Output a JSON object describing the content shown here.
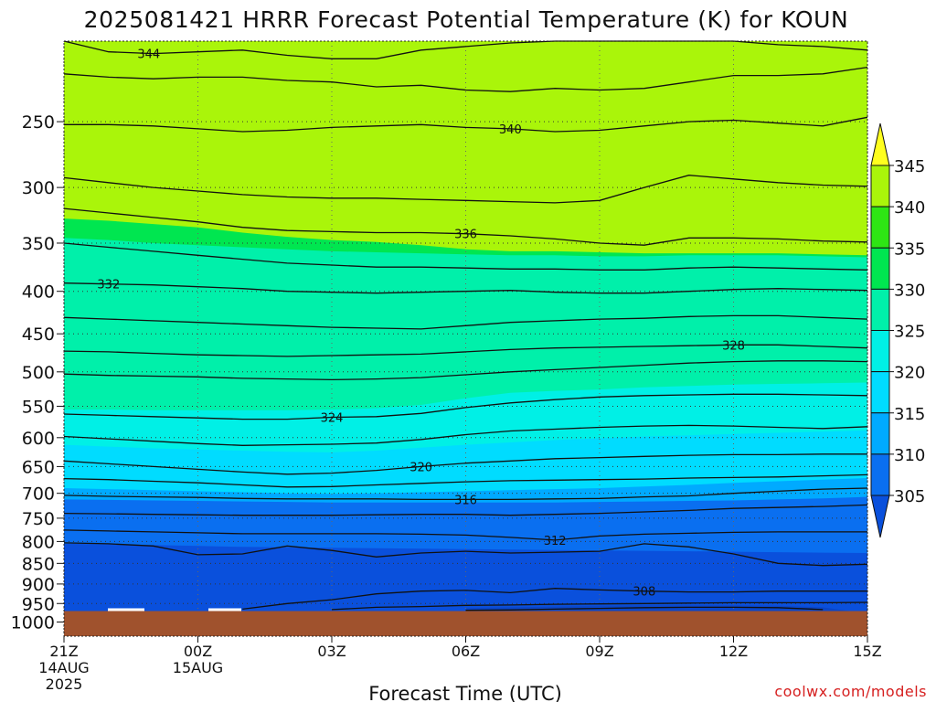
{
  "title": "2025081421 HRRR Forecast Potential Temperature (K) for KOUN",
  "watermark": "coolwx.com/models",
  "chart_data": {
    "type": "contour",
    "title": "2025081421 HRRR Forecast Potential Temperature (K) for KOUN",
    "xlabel": "Forecast Time (UTC)",
    "ylabel": "",
    "x_ticks": [
      {
        "hour": 0,
        "label": "21Z",
        "sub1": "14AUG",
        "sub2": "2025"
      },
      {
        "hour": 3,
        "label": "00Z",
        "sub1": "15AUG",
        "sub2": ""
      },
      {
        "hour": 6,
        "label": "03Z",
        "sub1": "",
        "sub2": ""
      },
      {
        "hour": 9,
        "label": "06Z",
        "sub1": "",
        "sub2": ""
      },
      {
        "hour": 12,
        "label": "09Z",
        "sub1": "",
        "sub2": ""
      },
      {
        "hour": 15,
        "label": "12Z",
        "sub1": "",
        "sub2": ""
      },
      {
        "hour": 18,
        "label": "15Z",
        "sub1": "",
        "sub2": ""
      }
    ],
    "x_range_hours": [
      0,
      18
    ],
    "y_ticks": [
      250,
      300,
      350,
      400,
      450,
      500,
      550,
      600,
      650,
      700,
      750,
      800,
      850,
      900,
      950,
      1000
    ],
    "y_scale": "log",
    "y_range": [
      200,
      1040
    ],
    "surface_pressure": 970,
    "colorbar": {
      "levels": [
        305,
        310,
        315,
        320,
        325,
        330,
        335,
        340,
        345
      ],
      "labels": [
        "345",
        "340",
        "335",
        "330",
        "325",
        "320",
        "315",
        "310",
        "305"
      ],
      "colors": {
        "lt305": "#0a50dc",
        "305": "#0a6ff0",
        "310": "#00aaff",
        "315": "#00dcff",
        "320": "#00f0e6",
        "325": "#00f0aa",
        "330": "#00e650",
        "335": "#2ee614",
        "340": "#aaf50a",
        "gt345": "#ffff1e"
      },
      "ground": "#a0522d"
    },
    "contours": [
      {
        "value": 344,
        "label": "344",
        "label_hour": 1.9,
        "p": [
          200,
          206,
          207,
          206,
          205,
          208,
          210,
          210,
          205,
          203,
          201,
          200,
          200,
          200,
          200,
          200,
          202,
          203,
          205
        ]
      },
      {
        "value": 342,
        "label": "",
        "p": [
          219,
          221,
          222,
          221,
          221,
          223,
          224,
          227,
          226,
          229,
          230,
          228,
          229,
          228,
          224,
          220,
          220,
          219,
          215
        ]
      },
      {
        "value": 340,
        "label": "340",
        "label_hour": 10,
        "p": [
          252,
          252,
          253,
          255,
          257,
          256,
          254,
          253,
          252,
          254,
          255,
          257,
          256,
          253,
          250,
          249,
          251,
          253,
          247
        ]
      },
      {
        "value": 338,
        "label": "",
        "p": [
          292,
          296,
          300,
          303,
          306,
          308,
          309,
          309,
          310,
          311,
          312,
          313,
          311,
          300,
          290,
          293,
          296,
          298,
          299
        ]
      },
      {
        "value": 336,
        "label": "336",
        "label_hour": 9,
        "p": [
          318,
          322,
          326,
          330,
          335,
          338,
          339,
          340,
          340,
          341,
          343,
          346,
          350,
          352,
          345,
          345,
          346,
          348,
          349
        ]
      },
      {
        "value": 334,
        "label": "",
        "p": [
          350,
          354,
          358,
          362,
          366,
          370,
          372,
          374,
          374,
          375,
          376,
          376,
          377,
          377,
          375,
          374,
          375,
          376,
          377
        ]
      },
      {
        "value": 332,
        "label": "332",
        "label_hour": 1,
        "p": [
          391,
          392,
          393,
          395,
          397,
          400,
          401,
          402,
          401,
          400,
          399,
          401,
          402,
          402,
          400,
          398,
          397,
          398,
          399
        ]
      },
      {
        "value": 330,
        "label": "",
        "p": [
          430,
          432,
          434,
          436,
          438,
          440,
          442,
          443,
          444,
          440,
          436,
          434,
          432,
          431,
          429,
          428,
          428,
          430,
          432
        ]
      },
      {
        "value": 328,
        "label": "328",
        "label_hour": 15,
        "p": [
          472,
          473,
          475,
          477,
          478,
          479,
          478,
          477,
          476,
          473,
          470,
          468,
          467,
          466,
          465,
          464,
          464,
          466,
          468
        ]
      },
      {
        "value": 326,
        "label": "",
        "p": [
          503,
          505,
          506,
          507,
          509,
          510,
          511,
          510,
          508,
          504,
          500,
          497,
          494,
          491,
          488,
          486,
          485,
          485,
          486
        ]
      },
      {
        "value": 324,
        "label": "324",
        "label_hour": 6,
        "p": [
          562,
          564,
          566,
          568,
          570,
          570,
          567,
          566,
          561,
          552,
          545,
          540,
          536,
          534,
          533,
          532,
          532,
          533,
          534
        ]
      },
      {
        "value": 322,
        "label": "",
        "p": [
          598,
          602,
          606,
          610,
          613,
          612,
          611,
          609,
          603,
          595,
          589,
          586,
          583,
          581,
          580,
          581,
          583,
          585,
          582
        ]
      },
      {
        "value": 320,
        "label": "320",
        "label_hour": 8,
        "p": [
          640,
          645,
          650,
          655,
          660,
          664,
          662,
          657,
          650,
          644,
          640,
          636,
          634,
          632,
          630,
          629,
          629,
          628,
          628
        ]
      },
      {
        "value": 318,
        "label": "",
        "p": [
          672,
          674,
          677,
          680,
          684,
          688,
          687,
          684,
          681,
          678,
          676,
          675,
          674,
          673,
          671,
          670,
          669,
          667,
          665
        ]
      },
      {
        "value": 316,
        "label": "316",
        "label_hour": 9,
        "p": [
          704,
          706,
          707,
          708,
          710,
          711,
          711,
          711,
          712,
          712,
          712,
          711,
          710,
          707,
          705,
          700,
          696,
          692,
          690
        ]
      },
      {
        "value": 314,
        "label": "",
        "p": [
          740,
          741,
          742,
          743,
          744,
          744,
          744,
          743,
          742,
          742,
          744,
          742,
          740,
          737,
          734,
          730,
          728,
          726,
          723
        ]
      },
      {
        "value": 312,
        "label": "312",
        "label_hour": 11,
        "p": [
          775,
          777,
          779,
          781,
          783,
          783,
          783,
          783,
          784,
          786,
          791,
          797,
          788,
          784,
          782,
          780,
          779,
          779,
          779
        ]
      },
      {
        "value": 310,
        "label": "",
        "p": [
          803,
          805,
          810,
          830,
          828,
          810,
          820,
          835,
          826,
          822,
          826,
          824,
          822,
          805,
          812,
          828,
          850,
          855,
          852
        ]
      },
      {
        "value": 308,
        "label": "308",
        "label_hour": 13,
        "p": [
          null,
          null,
          null,
          null,
          965,
          950,
          940,
          925,
          918,
          916,
          922,
          911,
          915,
          918,
          920,
          920,
          918,
          918,
          918
        ]
      },
      {
        "value": 306,
        "label": "",
        "p": [
          null,
          null,
          null,
          null,
          null,
          null,
          966,
          960,
          958,
          955,
          954,
          952,
          951,
          950,
          949,
          948,
          948,
          948,
          947
        ]
      },
      {
        "value": 304,
        "label": "",
        "p": [
          null,
          null,
          null,
          null,
          null,
          null,
          null,
          null,
          null,
          968,
          967,
          965,
          963,
          961,
          960,
          960,
          961,
          966,
          null
        ]
      }
    ],
    "shading_boundaries": [
      {
        "from": 345,
        "to": 340,
        "p": [
          200,
          201,
          202,
          203,
          205,
          205,
          206,
          206,
          207,
          208,
          208,
          209,
          209,
          209,
          208,
          207,
          206,
          206,
          206
        ]
      },
      {
        "from": 340,
        "to": 335,
        "p": [
          327,
          329,
          332,
          335,
          340,
          344,
          347,
          349,
          352,
          356,
          358,
          358,
          359,
          360,
          360,
          360,
          360,
          361,
          362
        ]
      },
      {
        "from": 335,
        "to": 330,
        "p": [
          345,
          347,
          350,
          352,
          354,
          356,
          358,
          359,
          360,
          361,
          362,
          362,
          363,
          363,
          362,
          362,
          362,
          363,
          364
        ]
      },
      {
        "from": 330,
        "to": 325,
        "p": [
          555,
          555,
          556,
          556,
          556,
          556,
          555,
          553,
          548,
          538,
          530,
          527,
          525,
          522,
          520,
          518,
          517,
          516,
          515
        ]
      },
      {
        "from": 325,
        "to": 320,
        "p": [
          612,
          615,
          618,
          620,
          622,
          624,
          625,
          622,
          617,
          612,
          608,
          604,
          601,
          598,
          596,
          594,
          592,
          590,
          588
        ]
      },
      {
        "from": 320,
        "to": 315,
        "p": [
          690,
          692,
          694,
          696,
          698,
          700,
          701,
          700,
          698,
          696,
          694,
          692,
          690,
          687,
          684,
          680,
          677,
          674,
          671
        ]
      },
      {
        "from": 315,
        "to": 310,
        "p": [
          712,
          713,
          714,
          715,
          716,
          717,
          718,
          718,
          718,
          718,
          718,
          718,
          717,
          716,
          715,
          714,
          712,
          710,
          707
        ]
      },
      {
        "from": 310,
        "to": 305,
        "p": [
          805,
          806,
          808,
          810,
          812,
          813,
          814,
          815,
          816,
          817,
          818,
          819,
          820,
          821,
          822,
          823,
          824,
          825,
          826
        ]
      }
    ]
  }
}
